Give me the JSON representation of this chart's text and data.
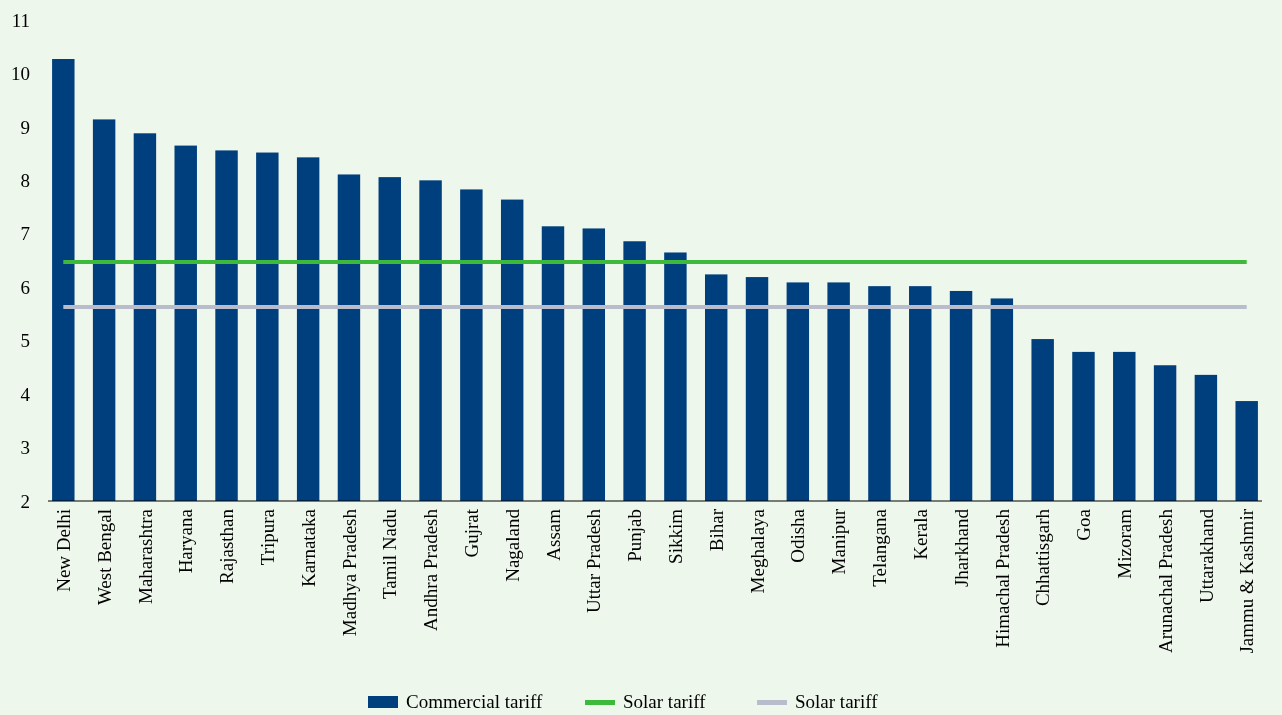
{
  "chart_data": {
    "type": "bar",
    "categories": [
      "New Delhi",
      "West Bengal",
      "Maharashtra",
      "Haryana",
      "Rajasthan",
      "Tripura",
      "Karnataka",
      "Madhya Pradesh",
      "Tamil Nadu",
      "Andhra Pradesh",
      "Gujrat",
      "Nagaland",
      "Assam",
      "Uttar Pradesh",
      "Punjab",
      "Sikkim",
      "Bihar",
      "Meghalaya",
      "Odisha",
      "Manipur",
      "Telangana",
      "Kerala",
      "Jharkhand",
      "Himachal Pradesh",
      "Chhattisgarh",
      "Goa",
      "Mizoram",
      "Arunachal Pradesh",
      "Uttarakhand",
      "Jammu & Kashmir"
    ],
    "series": [
      {
        "name": "Commercial tariff",
        "color": "#003f7d",
        "values": [
          10.27,
          9.14,
          8.88,
          8.65,
          8.56,
          8.52,
          8.43,
          8.11,
          8.06,
          8.0,
          7.83,
          7.64,
          7.14,
          7.1,
          6.86,
          6.65,
          6.24,
          6.19,
          6.09,
          6.09,
          6.02,
          6.02,
          5.93,
          5.79,
          5.03,
          4.79,
          4.79,
          4.54,
          4.36,
          3.87
        ]
      },
      {
        "name": "Solar tariff",
        "type": "line",
        "color": "#3dba3b",
        "values": [
          6.47,
          6.47,
          6.47,
          6.47,
          6.47,
          6.47,
          6.47,
          6.47,
          6.47,
          6.47,
          6.47,
          6.47,
          6.47,
          6.47,
          6.47,
          6.47,
          6.47,
          6.47,
          6.47,
          6.47,
          6.47,
          6.47,
          6.47,
          6.47,
          6.47,
          6.47,
          6.47,
          6.47,
          6.47,
          6.47
        ]
      },
      {
        "name": "Solar tariff",
        "type": "line",
        "color": "#b8bccb",
        "values": [
          5.63,
          5.63,
          5.63,
          5.63,
          5.63,
          5.63,
          5.63,
          5.63,
          5.63,
          5.63,
          5.63,
          5.63,
          5.63,
          5.63,
          5.63,
          5.63,
          5.63,
          5.63,
          5.63,
          5.63,
          5.63,
          5.63,
          5.63,
          5.63,
          5.63,
          5.63,
          5.63,
          5.63,
          5.63,
          5.63
        ]
      }
    ],
    "ylim": [
      2,
      11
    ],
    "yticks": [
      2,
      3,
      4,
      5,
      6,
      7,
      8,
      9,
      10,
      11
    ],
    "grid": false,
    "legend": "bottom"
  }
}
